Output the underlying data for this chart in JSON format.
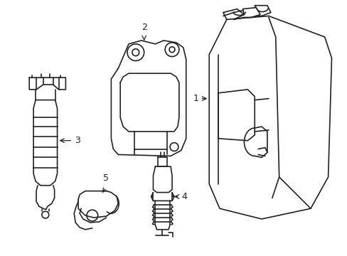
{
  "background_color": "#ffffff",
  "line_color": "#222222",
  "line_width": 1.2,
  "fig_width": 4.89,
  "fig_height": 3.6,
  "dpi": 100
}
